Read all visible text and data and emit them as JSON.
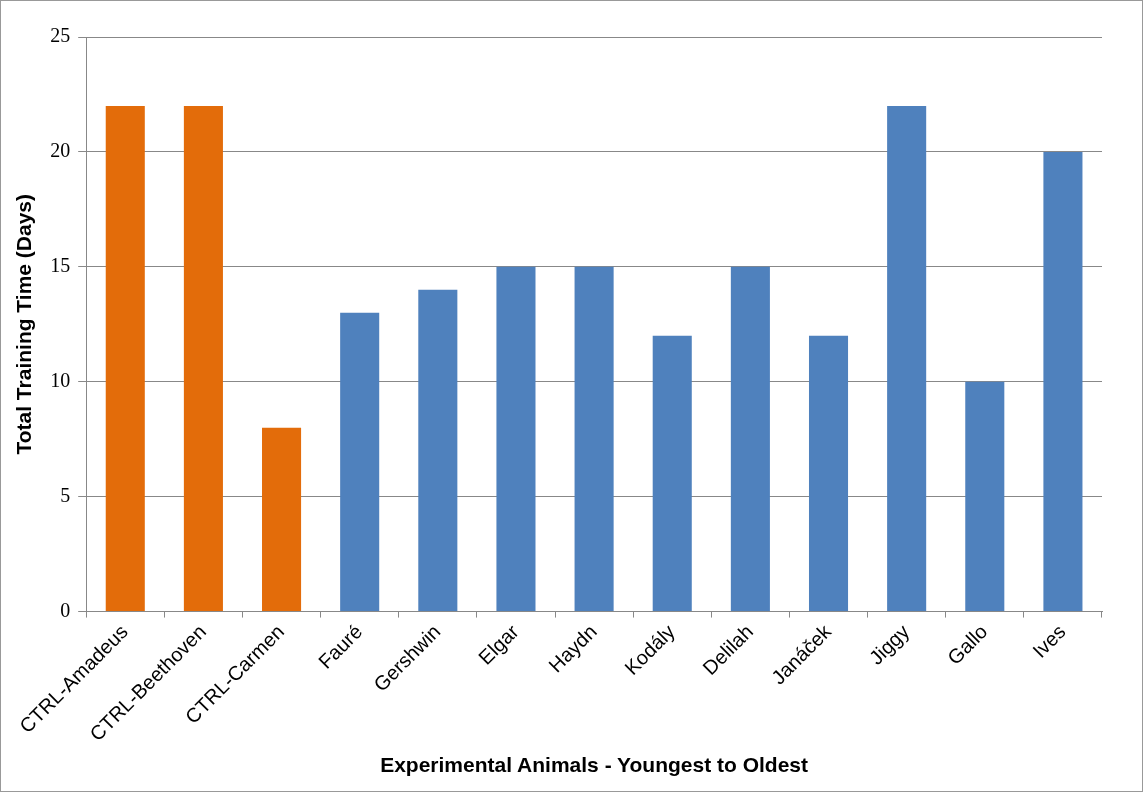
{
  "chart_data": {
    "type": "bar",
    "xlabel": "Experimental Animals - Youngest to Oldest",
    "ylabel": "Total Training Time (Days)",
    "categories": [
      "CTRL-Amadeus",
      "CTRL-Beethoven",
      "CTRL-Carmen",
      "Fauré",
      "Gershwin",
      "Elgar",
      "Haydn",
      "Kodály",
      "Delilah",
      "Janáček",
      "Jiggy",
      "Gallo",
      "Ives"
    ],
    "values": [
      22,
      22,
      8,
      13,
      14,
      15,
      15,
      12,
      15,
      12,
      22,
      10,
      20
    ],
    "colors": [
      "#e36c0a",
      "#e36c0a",
      "#e36c0a",
      "#4f81bd",
      "#4f81bd",
      "#4f81bd",
      "#4f81bd",
      "#4f81bd",
      "#4f81bd",
      "#4f81bd",
      "#4f81bd",
      "#4f81bd",
      "#4f81bd"
    ],
    "ylim": [
      0,
      25
    ],
    "yticks": [
      0,
      5,
      10,
      15,
      20,
      25
    ],
    "grid": "y",
    "legend": false
  }
}
